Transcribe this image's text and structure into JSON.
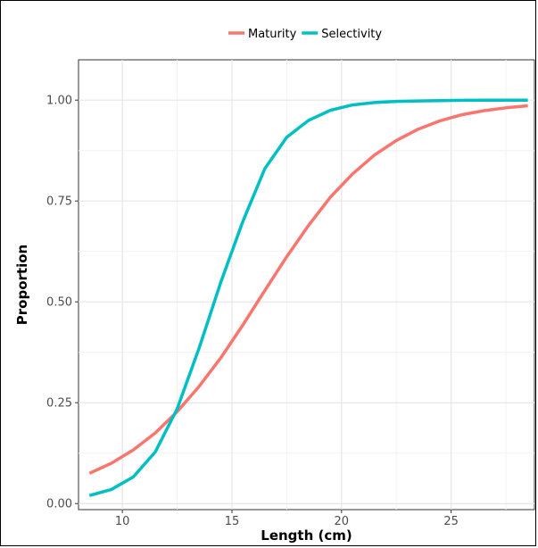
{
  "chart_data": {
    "type": "line",
    "xlabel": "Length (cm)",
    "ylabel": "Proportion",
    "xlim": [
      8,
      28.8
    ],
    "ylim": [
      -0.015,
      1.1
    ],
    "xticks": [
      10,
      15,
      20,
      25
    ],
    "yticks": [
      0.0,
      0.25,
      0.5,
      0.75,
      1.0
    ],
    "ytick_labels": [
      "0.00",
      "0.25",
      "0.50",
      "0.75",
      "1.00"
    ],
    "grid": true,
    "legend_position": "top",
    "x": [
      8.5,
      9.5,
      10.5,
      11.5,
      12.5,
      13.5,
      14.5,
      15.5,
      16.5,
      17.5,
      18.5,
      19.5,
      20.5,
      21.5,
      22.5,
      23.5,
      24.5,
      25.5,
      26.5,
      27.5,
      28.5
    ],
    "series": [
      {
        "name": "Maturity",
        "color": "#F8766D",
        "values": [
          0.075,
          0.1,
          0.133,
          0.175,
          0.228,
          0.29,
          0.362,
          0.443,
          0.528,
          0.612,
          0.69,
          0.76,
          0.817,
          0.864,
          0.9,
          0.928,
          0.949,
          0.964,
          0.974,
          0.981,
          0.986
        ]
      },
      {
        "name": "Selectivity",
        "color": "#00BFC4",
        "values": [
          0.02,
          0.035,
          0.066,
          0.128,
          0.235,
          0.385,
          0.55,
          0.7,
          0.83,
          0.908,
          0.95,
          0.975,
          0.988,
          0.994,
          0.997,
          0.998,
          0.999,
          0.9995,
          1.0,
          1.0,
          1.0
        ]
      }
    ]
  }
}
